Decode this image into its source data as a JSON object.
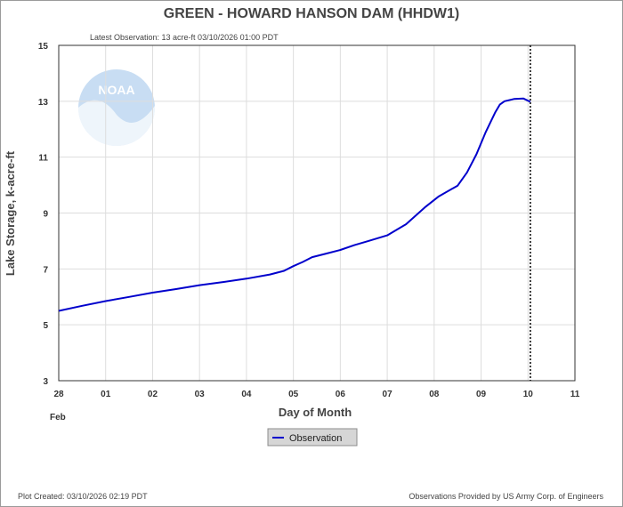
{
  "chart_data": {
    "type": "line",
    "title": "GREEN - HOWARD HANSON DAM  (HHDW1)",
    "subtitle": "Latest Observation: 13 acre-ft 03/10/2026 01:00 PDT",
    "xlabel": "Day of Month",
    "xlabel_month": "Feb",
    "ylabel": "Lake Storage, k-acre-ft",
    "x_ticks": [
      "28",
      "01",
      "02",
      "03",
      "04",
      "05",
      "06",
      "07",
      "08",
      "09",
      "10",
      "11"
    ],
    "xlim": [
      0,
      11
    ],
    "ylim": [
      3,
      15
    ],
    "y_ticks": [
      3,
      5,
      7,
      9,
      11,
      13,
      15
    ],
    "grid": true,
    "latest_marker_x": 10.05,
    "series": [
      {
        "name": "Observation",
        "color": "#0000cc",
        "x": [
          0,
          0.5,
          1,
          1.5,
          2,
          2.5,
          3,
          3.5,
          4,
          4.5,
          4.8,
          5,
          5.2,
          5.4,
          5.7,
          6,
          6.3,
          6.6,
          7,
          7.4,
          7.8,
          8.1,
          8.5,
          8.7,
          8.9,
          9.1,
          9.3,
          9.4,
          9.5,
          9.7,
          9.9,
          10.05
        ],
        "y": [
          5.5,
          5.68,
          5.85,
          6.0,
          6.15,
          6.28,
          6.42,
          6.53,
          6.65,
          6.8,
          6.93,
          7.1,
          7.25,
          7.42,
          7.55,
          7.68,
          7.85,
          8.0,
          8.2,
          8.6,
          9.2,
          9.6,
          9.98,
          10.45,
          11.1,
          11.9,
          12.6,
          12.88,
          13.0,
          13.08,
          13.1,
          12.98
        ]
      }
    ],
    "legend": {
      "position": "bottom-center"
    }
  },
  "footer": {
    "left": "Plot Created: 03/10/2026 02:19 PDT",
    "right": "Observations Provided by US Army Corp. of Engineers"
  },
  "logo": {
    "text": "NOAA",
    "icon": "noaa-logo-icon",
    "color": "#b8d4ee"
  }
}
